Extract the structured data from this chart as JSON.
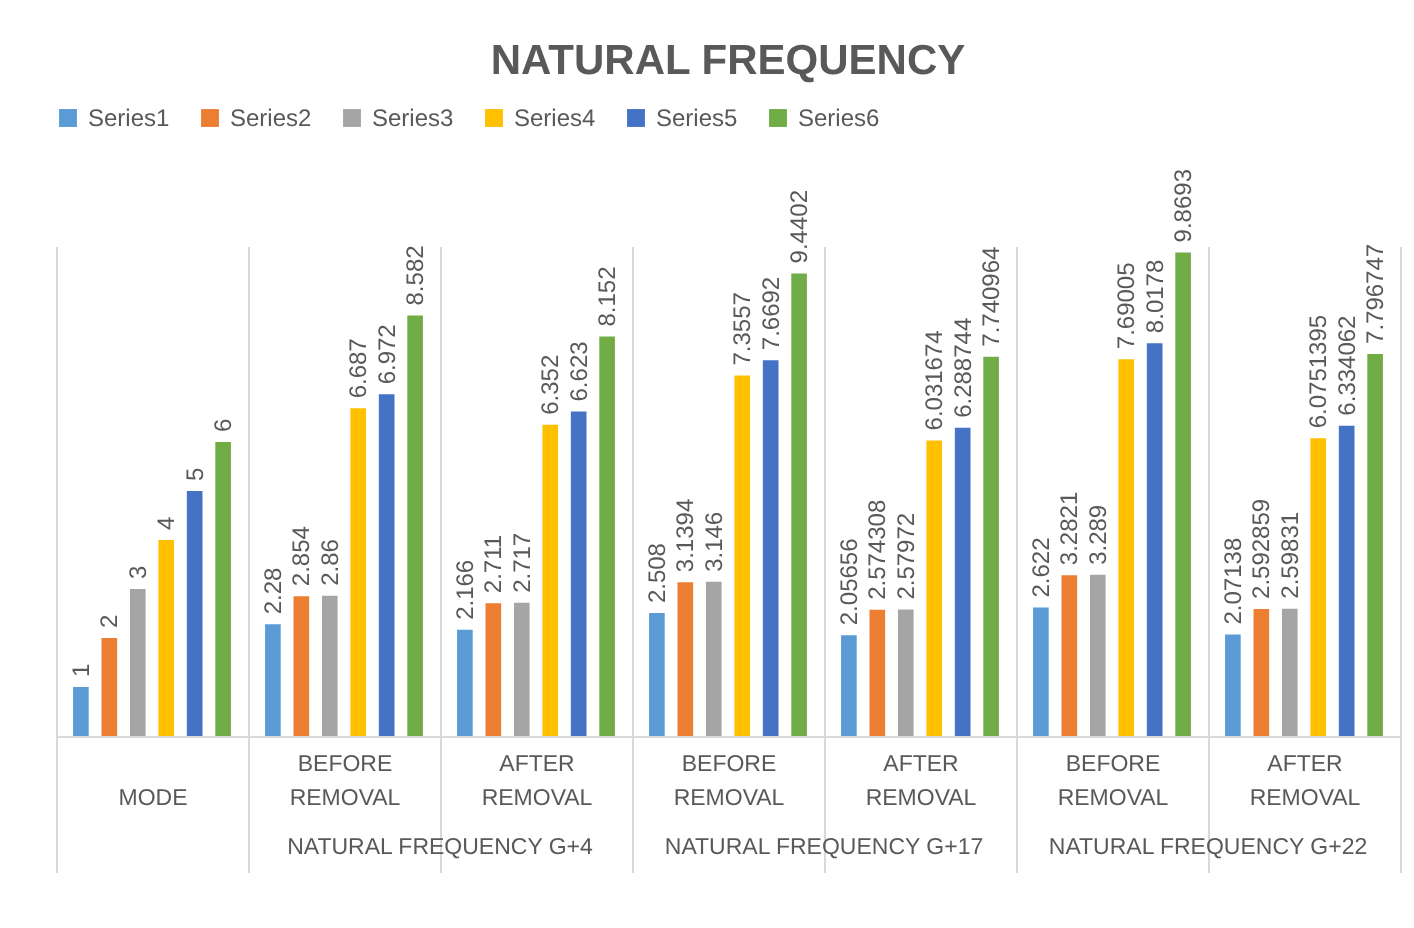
{
  "chart_data": {
    "type": "bar",
    "title": "NATURAL FREQUENCY",
    "categories": [
      "MODE",
      "BEFORE REMOVAL",
      "AFTER REMOVAL",
      "BEFORE REMOVAL",
      "AFTER REMOVAL",
      "BEFORE REMOVAL",
      "AFTER REMOVAL"
    ],
    "series": [
      {
        "name": "Series1",
        "color": "#5b9bd5",
        "values": [
          1,
          2.28,
          2.166,
          2.508,
          2.05656,
          2.622,
          2.07138
        ]
      },
      {
        "name": "Series2",
        "color": "#ed7d31",
        "values": [
          2,
          2.854,
          2.711,
          3.1394,
          2.574308,
          3.2821,
          2.592859
        ]
      },
      {
        "name": "Series3",
        "color": "#a5a5a5",
        "values": [
          3,
          2.86,
          2.717,
          3.146,
          2.57972,
          3.289,
          2.59831
        ]
      },
      {
        "name": "Series4",
        "color": "#ffc000",
        "values": [
          4,
          6.687,
          6.352,
          7.3557,
          6.031674,
          7.69005,
          6.0751395
        ]
      },
      {
        "name": "Series5",
        "color": "#4472c4",
        "values": [
          5,
          6.972,
          6.623,
          7.6692,
          6.288744,
          8.0178,
          6.334062
        ]
      },
      {
        "name": "Series6",
        "color": "#70ad47",
        "values": [
          6,
          8.582,
          8.152,
          9.4402,
          7.740964,
          9.8693,
          7.796747
        ]
      }
    ],
    "annotations": [
      "NATURAL FREQUENCY G+4",
      "NATURAL FREQUENCY G+17",
      "NATURAL FREQUENCY G+22"
    ],
    "data_labels": true,
    "legend": "top",
    "grid": "x",
    "tick_labels": "x"
  }
}
